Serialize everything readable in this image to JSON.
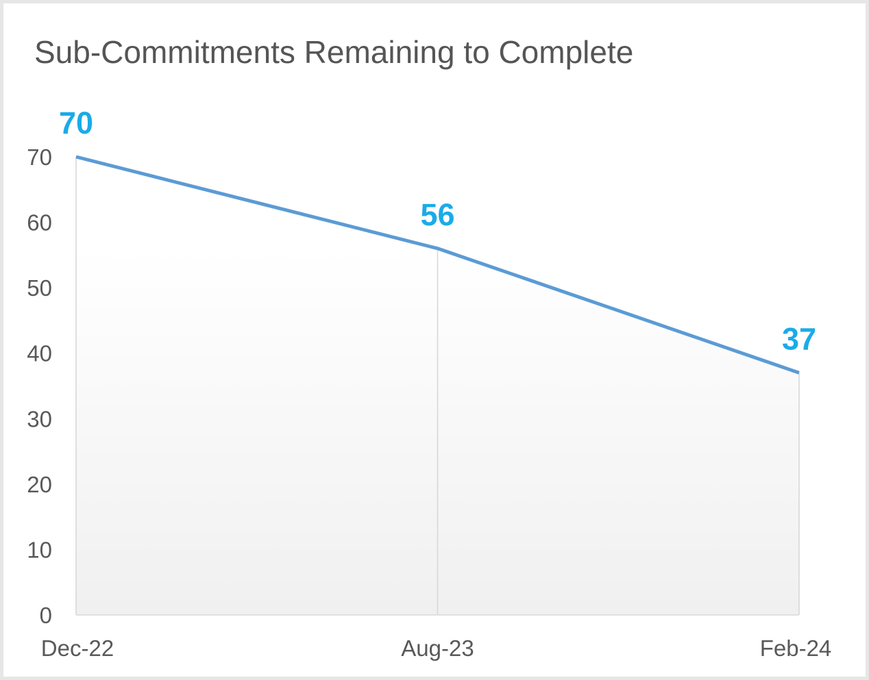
{
  "chart_data": {
    "type": "area",
    "title": "Sub-Commitments Remaining to Complete",
    "xlabel": "",
    "ylabel": "",
    "categories": [
      "Dec-22",
      "Aug-23",
      "Feb-24"
    ],
    "series": [
      {
        "values": [
          70,
          56,
          37
        ]
      }
    ],
    "data_labels": [
      "70",
      "56",
      "37"
    ],
    "ylim": [
      0,
      70
    ],
    "yticks": [
      "0",
      "10",
      "20",
      "30",
      "40",
      "50",
      "60",
      "70"
    ],
    "grid": false,
    "legend": "none",
    "colors": {
      "line": "#5b9bd5",
      "data_label": "#1aabe8",
      "axis_text": "#595959",
      "fill_top": "#ffffff",
      "fill_bottom": "#f0f0f0"
    }
  }
}
